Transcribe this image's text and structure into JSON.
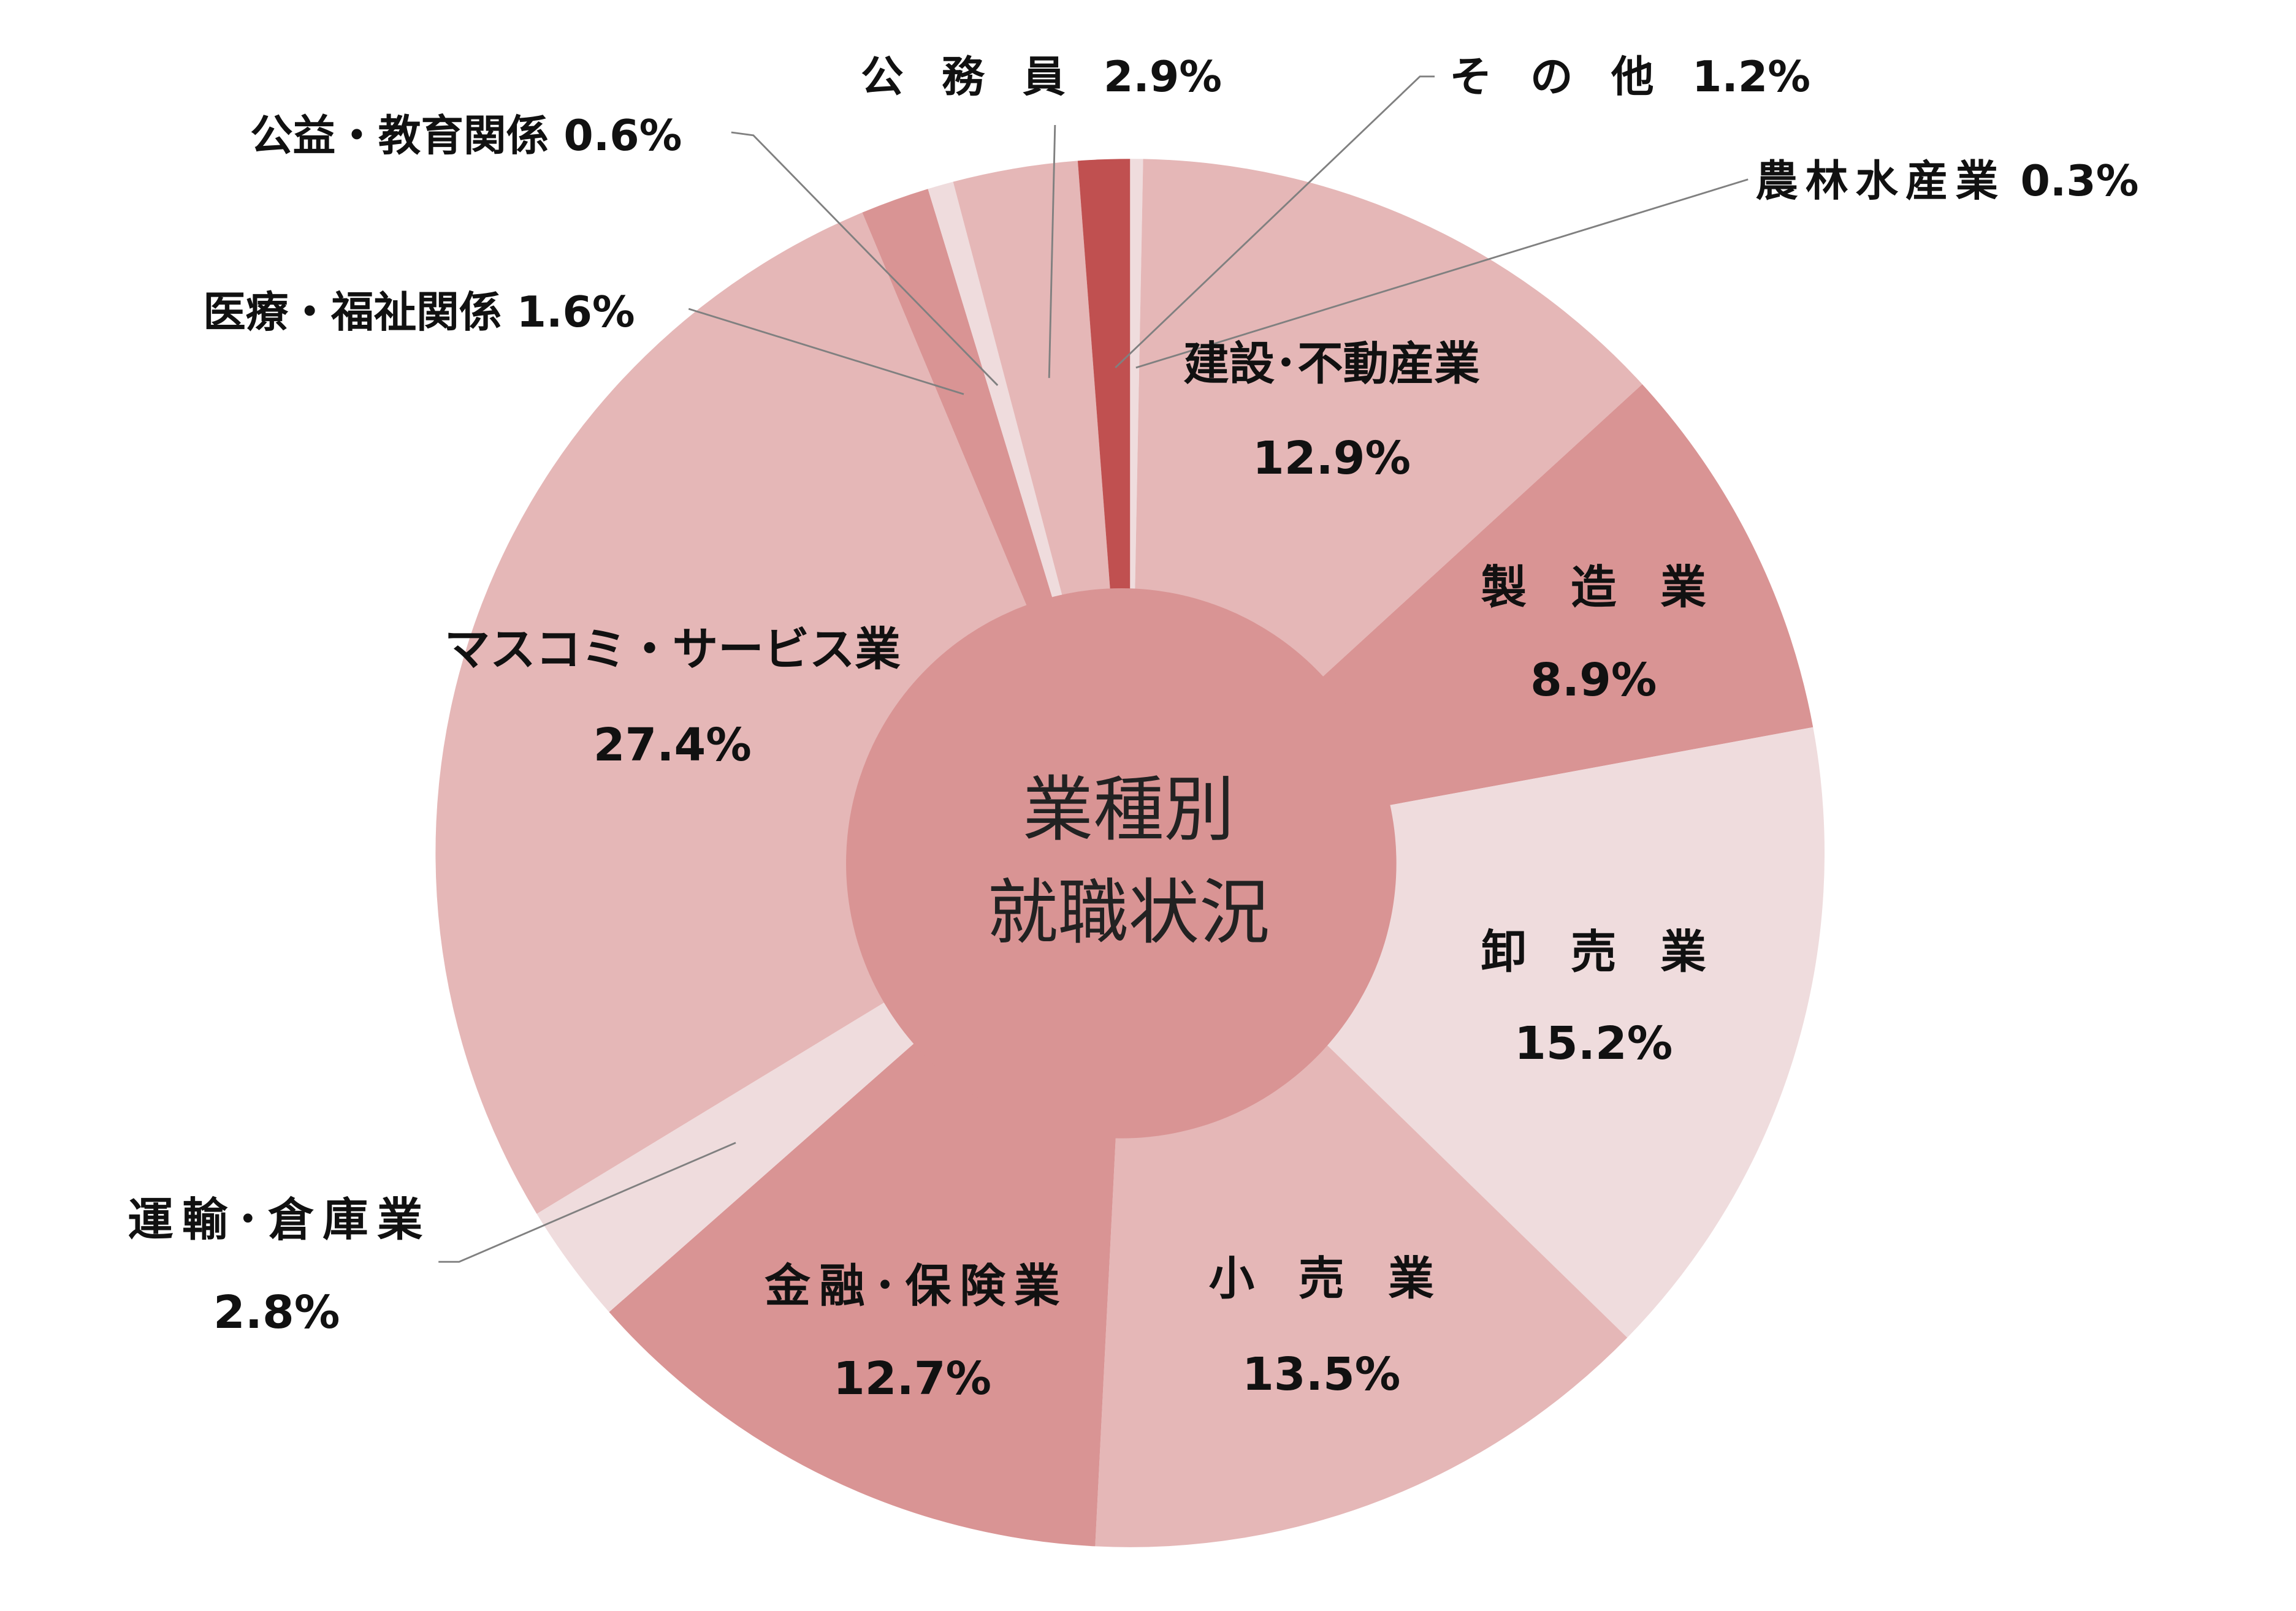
{
  "chart_data": {
    "type": "pie",
    "style": "donut-with-filled-center",
    "title": "業種別就職状況",
    "title_lines": [
      "業種別",
      "就職状況"
    ],
    "start_angle": "top, clockwise",
    "legend": "none (labels on slices and via leader lines)",
    "slices": [
      {
        "label": "農林水産業",
        "value": 0.3,
        "value_label": "0.3%",
        "color": "#efdcdd"
      },
      {
        "label": "建設･不動産業",
        "value": 12.9,
        "value_label": "12.9%",
        "color": "#e5b7b7"
      },
      {
        "label": "製造業",
        "value": 8.9,
        "value_label": "8.9%",
        "color": "#d99494"
      },
      {
        "label": "卸売業",
        "value": 15.2,
        "value_label": "15.2%",
        "color": "#efdcdd"
      },
      {
        "label": "小売業",
        "value": 13.5,
        "value_label": "13.5%",
        "color": "#e5b7b7"
      },
      {
        "label": "金融･保険業",
        "value": 12.7,
        "value_label": "12.7%",
        "color": "#d99494"
      },
      {
        "label": "運輸･倉庫業",
        "value": 2.8,
        "value_label": "2.8%",
        "color": "#efdcdd"
      },
      {
        "label": "マスコミ・サービス業",
        "value": 27.4,
        "value_label": "27.4%",
        "color": "#e5b7b7"
      },
      {
        "label": "医療・福祉関係",
        "value": 1.6,
        "value_label": "1.6%",
        "color": "#d99494"
      },
      {
        "label": "公益・教育関係",
        "value": 0.6,
        "value_label": "0.6%",
        "color": "#efdcdd"
      },
      {
        "label": "公務員",
        "value": 2.9,
        "value_label": "2.9%",
        "color": "#e5b7b7"
      },
      {
        "label": "その他",
        "value": 1.2,
        "value_label": "1.2%",
        "color": "#c05050"
      }
    ],
    "center_color": "#d99494"
  }
}
